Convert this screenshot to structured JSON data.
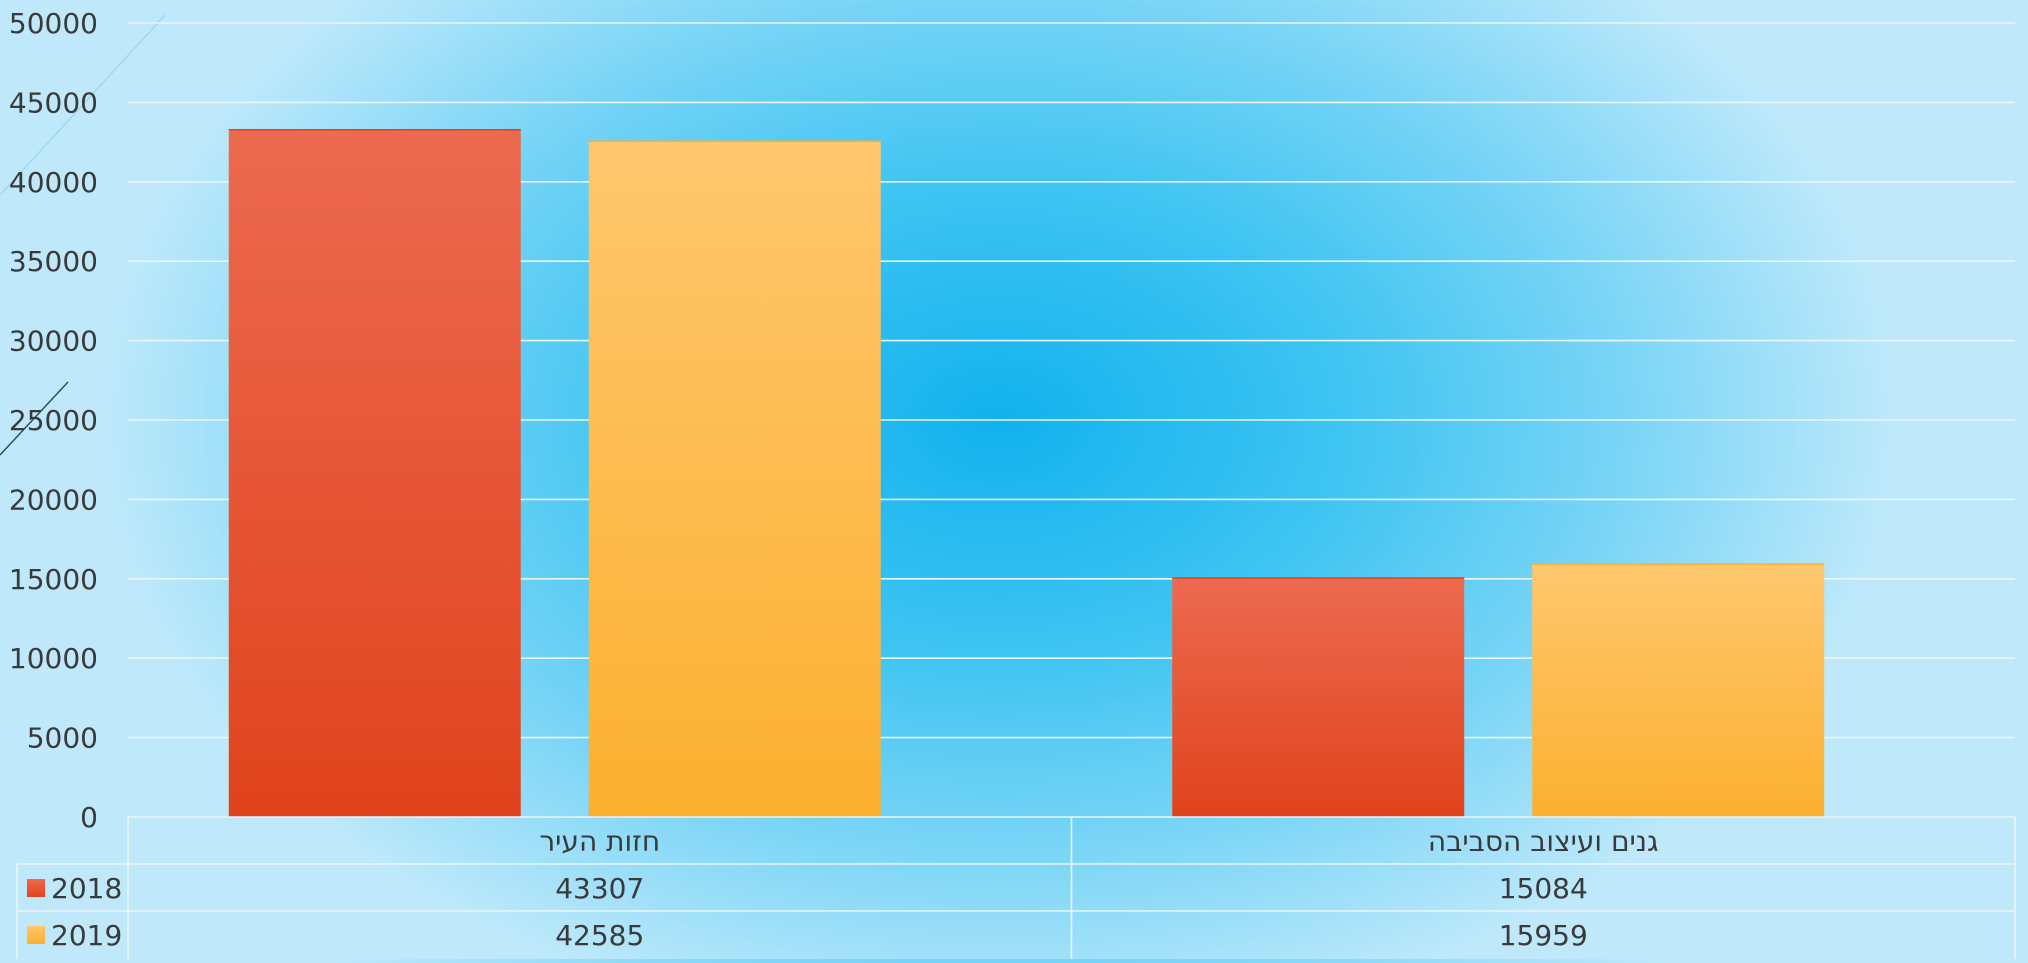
{
  "chart_data": {
    "type": "bar",
    "title": "",
    "xlabel": "",
    "ylabel": "",
    "categories": [
      "חזות העיר",
      "גנים ועיצוב הסביבה"
    ],
    "series": [
      {
        "name": "2018",
        "values": [
          43307,
          15084
        ],
        "color": "#e0431c",
        "color_light": "#ec6a50"
      },
      {
        "name": "2019",
        "values": [
          42585,
          15959
        ],
        "color": "#fbb02f",
        "color_light": "#fec76e"
      }
    ],
    "ylim": [
      0,
      50000
    ],
    "yticks": [
      0,
      5000,
      10000,
      15000,
      20000,
      25000,
      30000,
      35000,
      40000,
      45000,
      50000
    ],
    "grid": true,
    "data_table": true,
    "colors": {
      "gridline": "#e8f6fd",
      "axis_text": "#3a3a3a"
    }
  }
}
